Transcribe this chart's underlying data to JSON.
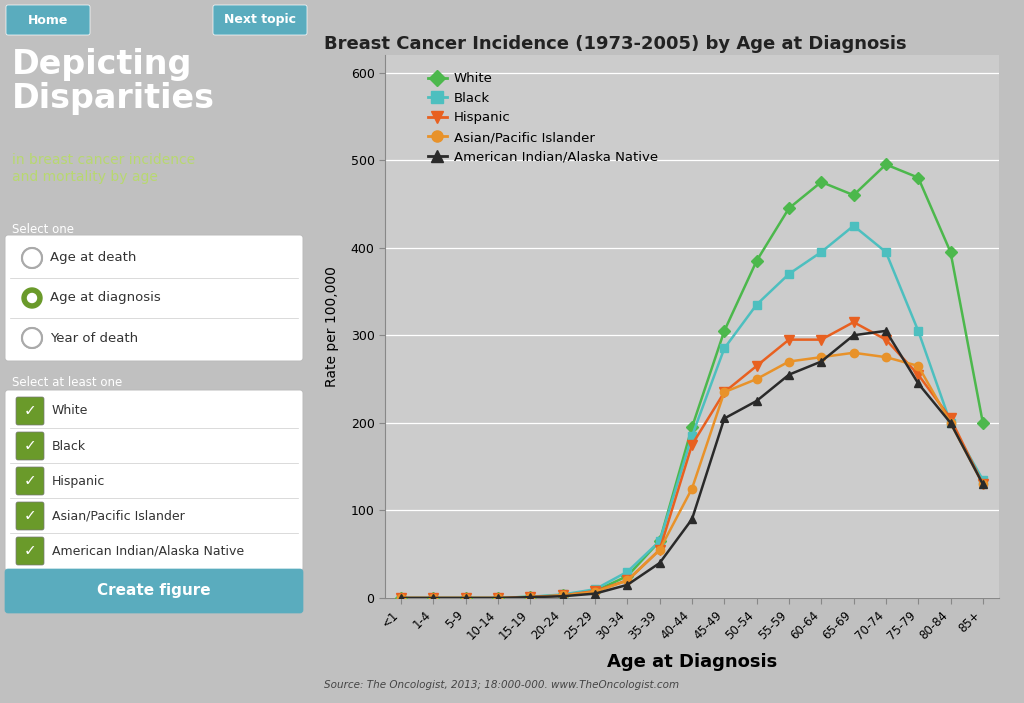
{
  "title": "Breast Cancer Incidence (1973-2005) by Age at Diagnosis",
  "xlabel": "Age at Diagnosis",
  "ylabel": "Rate per 100,000",
  "source": "Source: The Oncologist, 2013; 18:000-000. www.TheOncologist.com",
  "age_groups": [
    "<1",
    "1-4",
    "5-9",
    "10-14",
    "15-19",
    "20-24",
    "25-29",
    "30-34",
    "35-39",
    "40-44",
    "45-49",
    "50-54",
    "55-59",
    "60-64",
    "65-69",
    "70-74",
    "75-79",
    "80-84",
    "85+"
  ],
  "series": {
    "White": {
      "color": "#4cb84c",
      "marker": "D",
      "markersize": 6,
      "values": [
        0,
        0,
        0,
        0,
        1.5,
        3,
        8,
        25,
        65,
        195,
        305,
        385,
        445,
        475,
        460,
        495,
        480,
        395,
        200
      ]
    },
    "Black": {
      "color": "#4dbfbf",
      "marker": "s",
      "markersize": 6,
      "values": [
        0,
        0,
        0,
        0,
        1.5,
        4,
        10,
        30,
        65,
        185,
        285,
        335,
        370,
        395,
        425,
        395,
        305,
        200,
        135
      ]
    },
    "Hispanic": {
      "color": "#e86020",
      "marker": "v",
      "markersize": 7,
      "values": [
        0,
        0,
        0,
        0,
        1,
        3,
        8,
        20,
        55,
        175,
        235,
        265,
        295,
        295,
        315,
        295,
        255,
        205,
        130
      ]
    },
    "Asian/Pacific Islander": {
      "color": "#e8922a",
      "marker": "o",
      "markersize": 6,
      "values": [
        0,
        0,
        0,
        0,
        1,
        3,
        7,
        20,
        55,
        125,
        235,
        250,
        270,
        275,
        280,
        275,
        265,
        200,
        130
      ]
    },
    "American Indian/Alaska Native": {
      "color": "#2a2a2a",
      "marker": "^",
      "markersize": 6,
      "values": [
        0,
        0,
        0,
        0,
        1,
        2,
        5,
        15,
        40,
        90,
        205,
        225,
        255,
        270,
        300,
        305,
        245,
        200,
        130
      ]
    }
  },
  "ylim": [
    0,
    620
  ],
  "yticks": [
    0,
    100,
    200,
    300,
    400,
    500,
    600
  ],
  "sidebar_bg": "#6a9a2a",
  "sidebar_title_color": "#ffffff",
  "sidebar_subtitle_color": "#b8d870",
  "create_button_color": "#5aacbe",
  "create_button_text": "Create figure",
  "nav_bg": "#c0c0c0",
  "home_button_color": "#5aacbe",
  "next_button_color": "#5aacbe",
  "chart_bg": "#cccccc",
  "select_one_options": [
    "Age at death",
    "Age at diagnosis",
    "Year of death"
  ],
  "select_one_selected": 1,
  "select_at_least_options": [
    "White",
    "Black",
    "Hispanic",
    "Asian/Pacific Islander",
    "American Indian/Alaska Native"
  ]
}
